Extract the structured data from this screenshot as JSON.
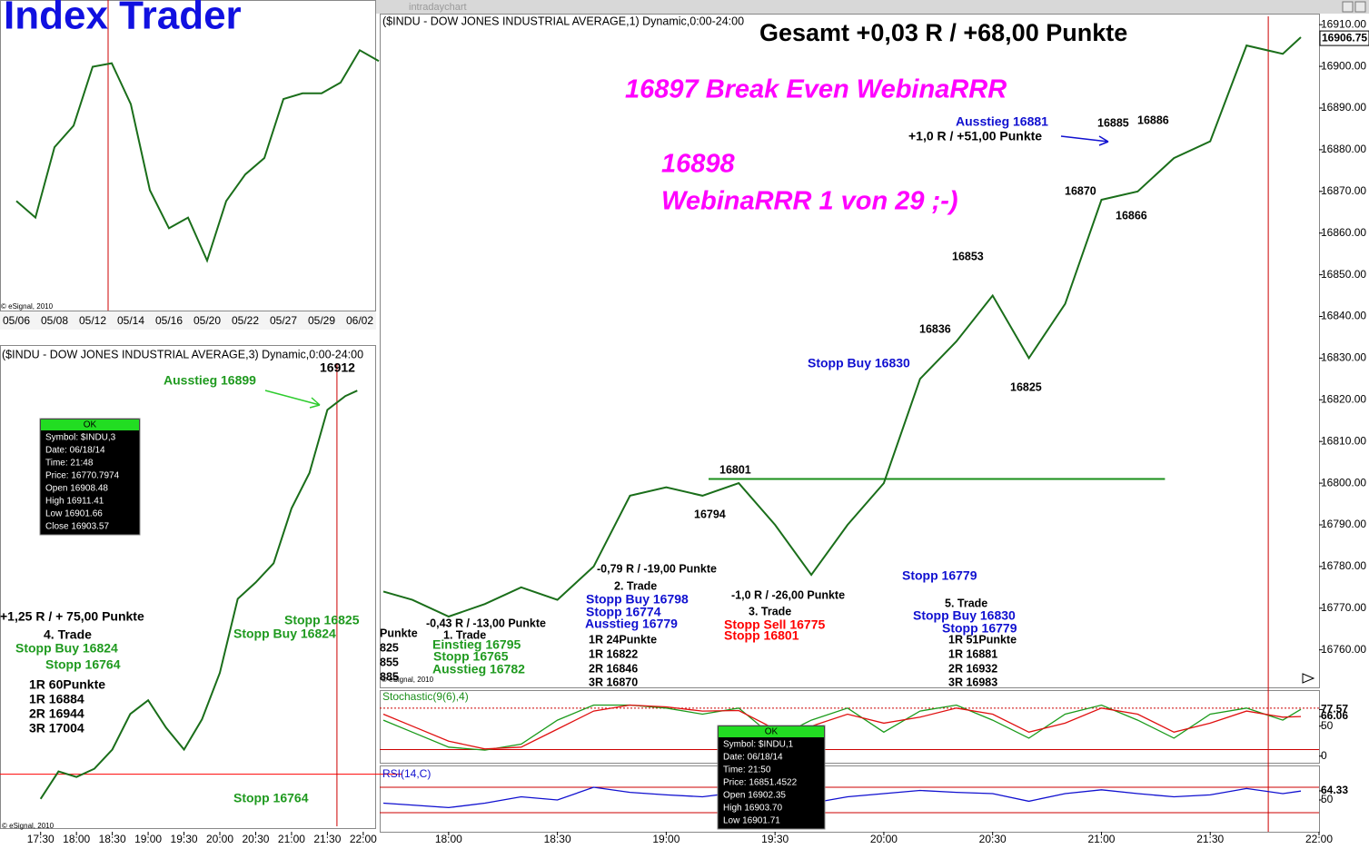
{
  "window_title": "intradaychart",
  "title": "Index Trader",
  "copyright": "© eSignal, 2010",
  "chart_data": [
    {
      "type": "line",
      "color": "#1a6e1a",
      "categories": [
        "05/06",
        null,
        "05/08",
        null,
        "05/12",
        null,
        "05/14",
        null,
        "05/16",
        null,
        "05/20",
        null,
        "05/22",
        null,
        "05/27",
        null,
        "05/29",
        null,
        "06/02",
        null
      ],
      "values": [
        16530,
        16507,
        16605,
        16635,
        16717,
        16722,
        16665,
        16545,
        16492,
        16507,
        16447,
        16530,
        16567,
        16590,
        16672,
        16680,
        16680,
        16695,
        16740,
        16725
      ],
      "ylim": [
        16380,
        16810
      ]
    },
    {
      "type": "line",
      "color": "#1a6e1a",
      "title": "($INDU - DOW JONES INDUSTRIAL AVERAGE,3) Dynamic,0:00-24:00",
      "x": [
        1050,
        1065,
        1080,
        1095,
        1110,
        1125,
        1140,
        1155,
        1170,
        1185,
        1200,
        1215,
        1230,
        1245,
        1260,
        1275,
        1290,
        1305,
        1315
      ],
      "values": [
        16755,
        16765,
        16763,
        16766,
        16773,
        16786,
        16791,
        16781,
        16773,
        16784,
        16801,
        16828,
        16834,
        16841,
        16861,
        16874,
        16897,
        16902,
        16904
      ],
      "xlim": [
        1016,
        1330
      ],
      "ylim": [
        16745,
        16914
      ],
      "xticks": [
        {
          "value": 1050,
          "label": "17:30"
        },
        {
          "value": 1080,
          "label": "18:00"
        },
        {
          "value": 1110,
          "label": "18:30"
        },
        {
          "value": 1140,
          "label": "19:00"
        },
        {
          "value": 1170,
          "label": "19:30"
        },
        {
          "value": 1200,
          "label": "20:00"
        },
        {
          "value": 1230,
          "label": "20:30"
        },
        {
          "value": 1260,
          "label": "21:00"
        },
        {
          "value": 1290,
          "label": "21:30"
        },
        {
          "value": 1320,
          "label": "22:00"
        }
      ],
      "hline": 16764,
      "hline_color": "#ff0000",
      "vline": 1298,
      "vline_color": "#cc0000",
      "annotations": [
        {
          "text": "Ausstieg 16899",
          "color": "#1f9a1f"
        },
        {
          "text": "16912",
          "color": "#000000"
        },
        {
          "text": "+1,25 R / + 75,00 Punkte",
          "color": "#000000"
        },
        {
          "text": "4. Trade",
          "color": "#000000"
        },
        {
          "text": "Stopp Buy 16824",
          "color": "#1f9a1f"
        },
        {
          "text": "Stopp 16764",
          "color": "#1f9a1f"
        },
        {
          "text": "1R 60Punkte",
          "color": "#000000"
        },
        {
          "text": "1R 16884",
          "color": "#000000"
        },
        {
          "text": "2R 16944",
          "color": "#000000"
        },
        {
          "text": "3R 17004",
          "color": "#000000"
        },
        {
          "text": "Stopp 16825",
          "color": "#1f9a1f"
        },
        {
          "text": "Stopp Buy 16824",
          "color": "#1f9a1f"
        },
        {
          "text": "Stopp 16764",
          "color": "#1f9a1f"
        }
      ]
    },
    {
      "type": "line",
      "color": "#1a6e1a",
      "title": "($INDU - DOW JONES INDUSTRIAL AVERAGE,1) Dynamic,0:00-24:00",
      "x": [
        1062,
        1070,
        1080,
        1090,
        1100,
        1110,
        1120,
        1130,
        1140,
        1150,
        1160,
        1170,
        1180,
        1190,
        1200,
        1210,
        1220,
        1230,
        1240,
        1250,
        1260,
        1270,
        1280,
        1290,
        1300,
        1310,
        1315
      ],
      "values": [
        16774,
        16772,
        16768,
        16771,
        16775,
        16772,
        16780,
        16797,
        16799,
        16797,
        16800,
        16790,
        16778,
        16790,
        16800,
        16825,
        16834,
        16845,
        16830,
        16843,
        16868,
        16870,
        16878,
        16882,
        16905,
        16903,
        16907
      ],
      "xlim": [
        1061,
        1320
      ],
      "ylim": [
        16751,
        16912
      ],
      "xticks": [
        {
          "value": 1080,
          "label": "18:00"
        },
        {
          "value": 1110,
          "label": "18:30"
        },
        {
          "value": 1140,
          "label": "19:00"
        },
        {
          "value": 1170,
          "label": "19:30"
        },
        {
          "value": 1200,
          "label": "20:00"
        },
        {
          "value": 1230,
          "label": "20:30"
        },
        {
          "value": 1260,
          "label": "21:00"
        },
        {
          "value": 1290,
          "label": "21:30"
        },
        {
          "value": 1320,
          "label": "22:00"
        }
      ],
      "yticks": [
        {
          "value": 16760,
          "label": "16760.00"
        },
        {
          "value": 16770,
          "label": "16770.00"
        },
        {
          "value": 16780,
          "label": "16780.00"
        },
        {
          "value": 16790,
          "label": "16790.00"
        },
        {
          "value": 16800,
          "label": "16800.00"
        },
        {
          "value": 16810,
          "label": "16810.00"
        },
        {
          "value": 16820,
          "label": "16820.00"
        },
        {
          "value": 16830,
          "label": "16830.00"
        },
        {
          "value": 16840,
          "label": "16840.00"
        },
        {
          "value": 16850,
          "label": "16850.00"
        },
        {
          "value": 16860,
          "label": "16860.00"
        },
        {
          "value": 16870,
          "label": "16870.00"
        },
        {
          "value": 16880,
          "label": "16880.00"
        },
        {
          "value": 16890,
          "label": "16890.00"
        },
        {
          "value": 16900,
          "label": "16900.00"
        },
        {
          "value": 16910,
          "label": "16910.00"
        }
      ],
      "last_price": 16906.75,
      "hline": 16801,
      "hline_color": "#1a8f1a",
      "vline": 1306,
      "vline_color": "#cc0000",
      "annotations": [
        {
          "text": "Gesamt +0,03 R / +68,00 Punkte",
          "color": "#000000"
        },
        {
          "text": "16897 Break Even WebinaRRR",
          "color": "#ff00ff"
        },
        {
          "text": "16898",
          "color": "#ff00ff"
        },
        {
          "text": "WebinaRRR 1 von 29 ;-)",
          "color": "#ff00ff"
        },
        {
          "text": "Ausstieg 16881",
          "color": "#1010d0"
        },
        {
          "text": "+1,0 R / +51,00 Punkte",
          "color": "#000000"
        },
        {
          "text": "16885",
          "color": "#000000"
        },
        {
          "text": "16886",
          "color": "#000000"
        },
        {
          "text": "16870",
          "color": "#000000"
        },
        {
          "text": "16866",
          "color": "#000000"
        },
        {
          "text": "16853",
          "color": "#000000"
        },
        {
          "text": "16836",
          "color": "#000000"
        },
        {
          "text": "16825",
          "color": "#000000"
        },
        {
          "text": "16801",
          "color": "#000000"
        },
        {
          "text": "16794",
          "color": "#000000"
        },
        {
          "text": "Stopp Buy 16830",
          "color": "#1010d0"
        },
        {
          "text": "Stopp 16779",
          "color": "#1010d0"
        },
        {
          "text": "-0,79 R / -19,00 Punkte",
          "color": "#000000"
        },
        {
          "text": "2. Trade",
          "color": "#000000"
        },
        {
          "text": "Stopp Buy 16798",
          "color": "#1010d0"
        },
        {
          "text": "Stopp 16774",
          "color": "#1010d0"
        },
        {
          "text": "Ausstieg 16779",
          "color": "#1010d0"
        },
        {
          "text": "1R 24Punkte",
          "color": "#000000"
        },
        {
          "text": "1R 16822",
          "color": "#000000"
        },
        {
          "text": "2R 16846",
          "color": "#000000"
        },
        {
          "text": "3R 16870",
          "color": "#000000"
        },
        {
          "text": "-1,0 R / -26,00 Punkte",
          "color": "#000000"
        },
        {
          "text": "3. Trade",
          "color": "#000000"
        },
        {
          "text": "Stopp Sell 16775",
          "color": "#ff0000"
        },
        {
          "text": "Stopp 16801",
          "color": "#ff0000"
        },
        {
          "text": "5. Trade",
          "color": "#000000"
        },
        {
          "text": "Stopp Buy 16830",
          "color": "#1010d0"
        },
        {
          "text": "Stopp 16779",
          "color": "#1010d0"
        },
        {
          "text": "1R 51Punkte",
          "color": "#000000"
        },
        {
          "text": "1R 16881",
          "color": "#000000"
        },
        {
          "text": "2R 16932",
          "color": "#000000"
        },
        {
          "text": "3R 16983",
          "color": "#000000"
        },
        {
          "text": "-0,43 R / -13,00 Punkte",
          "color": "#000000"
        },
        {
          "text": "1. Trade",
          "color": "#000000"
        },
        {
          "text": "Einstieg 16795",
          "color": "#1f9a1f"
        },
        {
          "text": "Stopp 16765",
          "color": "#1f9a1f"
        },
        {
          "text": "Ausstieg 16782",
          "color": "#1f9a1f"
        },
        {
          "text": "Punkte",
          "color": "#000000"
        },
        {
          "text": "825",
          "color": "#000000"
        },
        {
          "text": "855",
          "color": "#000000"
        },
        {
          "text": "885",
          "color": "#000000"
        }
      ]
    },
    {
      "type": "line",
      "title": "Stochastic(9(6),4)",
      "x": [
        1062,
        1070,
        1080,
        1090,
        1100,
        1110,
        1120,
        1130,
        1140,
        1150,
        1160,
        1170,
        1180,
        1190,
        1200,
        1210,
        1220,
        1230,
        1240,
        1250,
        1260,
        1270,
        1280,
        1290,
        1300,
        1310,
        1315
      ],
      "series": [
        {
          "color": "#1a9a1a",
          "values": [
            60,
            40,
            15,
            10,
            20,
            60,
            85,
            85,
            80,
            70,
            80,
            30,
            60,
            80,
            40,
            75,
            85,
            60,
            30,
            70,
            85,
            60,
            30,
            70,
            80,
            60,
            78
          ]
        },
        {
          "color": "#e01010",
          "values": [
            70,
            50,
            25,
            12,
            15,
            45,
            75,
            85,
            82,
            75,
            76,
            45,
            50,
            70,
            55,
            65,
            80,
            70,
            40,
            55,
            80,
            70,
            40,
            55,
            75,
            65,
            66
          ]
        }
      ],
      "xlim": [
        1061,
        1320
      ],
      "ylim": [
        -8,
        107
      ],
      "yticks": [
        0,
        50,
        66.06,
        77.57
      ],
      "levels": [
        80,
        11
      ]
    },
    {
      "type": "line",
      "title": "RSI(14,C)",
      "x": [
        1062,
        1070,
        1080,
        1090,
        1100,
        1110,
        1120,
        1130,
        1140,
        1150,
        1160,
        1170,
        1180,
        1190,
        1200,
        1210,
        1220,
        1230,
        1240,
        1250,
        1260,
        1270,
        1280,
        1290,
        1300,
        1310,
        1315
      ],
      "series": [
        {
          "color": "#1010d0",
          "values": [
            45,
            42,
            38,
            45,
            55,
            50,
            70,
            62,
            58,
            55,
            62,
            40,
            45,
            55,
            60,
            65,
            62,
            60,
            48,
            60,
            66,
            60,
            55,
            58,
            68,
            60,
            64
          ]
        }
      ],
      "xlim": [
        1061,
        1320
      ],
      "ylim": [
        0,
        100
      ],
      "yticks": [
        50,
        64.33
      ],
      "levels": [
        70,
        30
      ]
    }
  ],
  "info_boxes": [
    {
      "title": "OK",
      "lines": [
        "Symbol: $INDU,3",
        "Date: 06/18/14",
        "Time: 21:48",
        "Price: 16770.7974",
        "Open 16908.48",
        "High 16911.41",
        "Low 16901.66",
        "Close 16903.57"
      ]
    },
    {
      "title": "OK",
      "lines": [
        "Symbol: $INDU,1",
        "Date: 06/18/14",
        "Time: 21:50",
        "Price: 16851.4522",
        "Open 16902.35",
        "High 16903.70",
        "Low 16901.71"
      ]
    }
  ]
}
